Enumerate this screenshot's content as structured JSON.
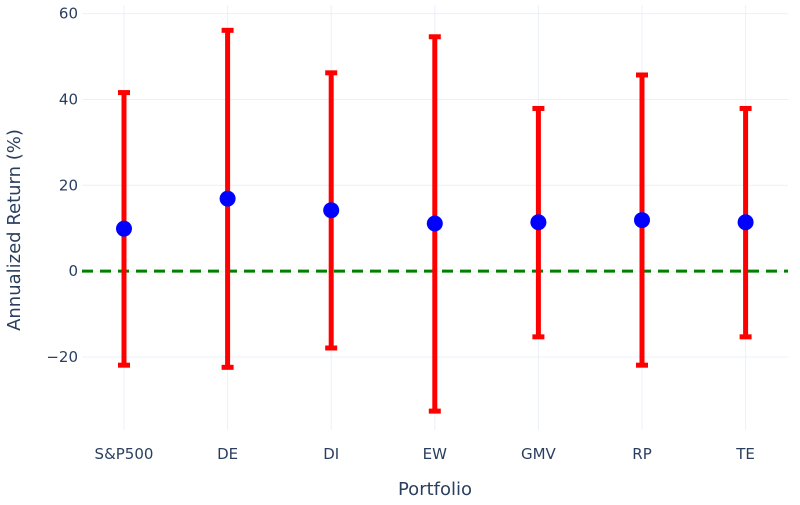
{
  "chart_data": {
    "type": "scatter",
    "title": "",
    "xlabel": "Portfolio",
    "ylabel": "Annualized Return (%)",
    "categories": [
      "S&P500",
      "DE",
      "DI",
      "EW",
      "GMV",
      "RP",
      "TE"
    ],
    "mean": [
      9.9,
      16.9,
      14.2,
      11.1,
      11.4,
      11.9,
      11.4
    ],
    "upper": [
      41.6,
      56.1,
      46.2,
      54.6,
      37.9,
      45.7,
      37.9
    ],
    "lower": [
      -21.9,
      -22.4,
      -17.9,
      -32.6,
      -15.3,
      -21.9,
      -15.3
    ],
    "ylim": [
      -37,
      62
    ],
    "yticks": [
      -20,
      0,
      20,
      40,
      60
    ],
    "ytick_labels": [
      "−20",
      "0",
      "20",
      "40",
      "60"
    ],
    "reference_line": {
      "y": 0,
      "style": "dashed",
      "color": "#008000"
    },
    "colors": {
      "point": "#0000ff",
      "errorbar": "#ff0000",
      "grid": "#ebf0f8",
      "text": "#2a3f5f"
    },
    "grid": true,
    "legend": false
  }
}
